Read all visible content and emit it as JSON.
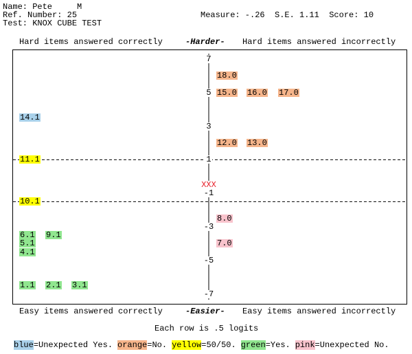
{
  "header": {
    "name": "Name: Pete     M",
    "ref": "Ref. Number: 25",
    "test": "Test: KNOX CUBE TEST",
    "stats": "Measure: -.26  S.E. 1.11  Score: 10"
  },
  "top": {
    "left": "Hard items answered correctly",
    "center": "-Harder-",
    "right": "Hard items answered incorrectly"
  },
  "bottom": {
    "left": "Easy items answered correctly",
    "center": "-Easier-",
    "right": "Easy items answered incorrectly"
  },
  "note": "Each row is .5 logits",
  "axis": {
    "ticks": [
      7,
      5,
      3,
      1,
      -1,
      -3,
      -5,
      -7
    ]
  },
  "person": {
    "label": "XXX",
    "color": "#e8202a"
  },
  "colors": {
    "blue": "#a9d1ea",
    "orange": "#f6b58b",
    "yellow": "#ffff00",
    "green": "#90e68f",
    "pink": "#f8c3cc"
  },
  "items": [
    {
      "label": "18.0",
      "color": "orange"
    },
    {
      "label": "15.0",
      "color": "orange"
    },
    {
      "label": "16.0",
      "color": "orange"
    },
    {
      "label": "17.0",
      "color": "orange"
    },
    {
      "label": "14.1",
      "color": "blue"
    },
    {
      "label": "12.0",
      "color": "orange"
    },
    {
      "label": "13.0",
      "color": "orange"
    },
    {
      "label": "11.1",
      "color": "yellow"
    },
    {
      "label": "10.1",
      "color": "yellow"
    },
    {
      "label": "8.0",
      "color": "pink"
    },
    {
      "label": "6.1",
      "color": "green"
    },
    {
      "label": "9.1",
      "color": "green"
    },
    {
      "label": "5.1",
      "color": "green"
    },
    {
      "label": "7.0",
      "color": "pink"
    },
    {
      "label": "4.1",
      "color": "green"
    },
    {
      "label": "1.1",
      "color": "green"
    },
    {
      "label": "2.1",
      "color": "green"
    },
    {
      "label": "3.1",
      "color": "green"
    }
  ],
  "legend": [
    {
      "key": "blue",
      "text": "=Unexpected Yes."
    },
    {
      "key": "orange",
      "text": "=No."
    },
    {
      "key": "yellow",
      "text": "=50/50."
    },
    {
      "key": "green",
      "text": "=Yes."
    },
    {
      "key": "pink",
      "text": "=Unexpected No."
    }
  ]
}
